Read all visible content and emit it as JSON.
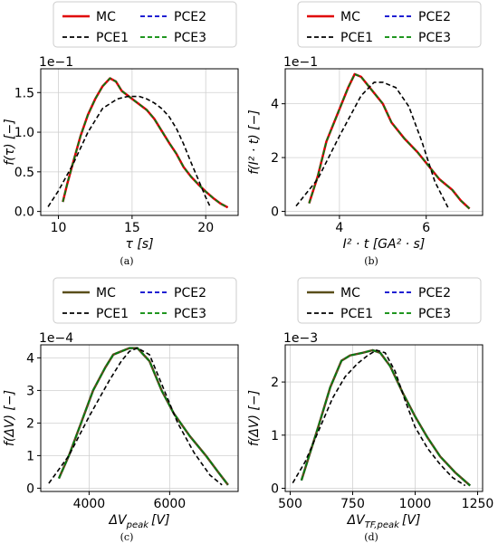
{
  "figure": {
    "legend_labels": [
      "MC",
      "PCE1",
      "PCE2",
      "PCE3"
    ],
    "colors": {
      "MC": "#e00000",
      "PCE1": "#000000",
      "PCE2": "#0000cc",
      "PCE3": "#008800",
      "MC_lower": "#5a4f1a"
    }
  },
  "panels": [
    {
      "id": "a",
      "caption": "(a)",
      "scale_label": "1e−1",
      "ylabel": "f(τ) [−]",
      "xlabel": "τ [s]",
      "mc_color": "#e00000",
      "chart_data": {
        "type": "line",
        "xlim": [
          8.8,
          22.2
        ],
        "ylim": [
          -0.05,
          1.8
        ],
        "xticks": [
          10,
          15,
          20
        ],
        "xtick_labels": [
          "10",
          "15",
          "20"
        ],
        "yticks": [
          0,
          0.5,
          1.0,
          1.5
        ],
        "ytick_labels": [
          "0.0",
          "0.5",
          "1.0",
          "1.5"
        ],
        "grid": true,
        "legend_position": "top-outside",
        "series": [
          {
            "name": "MC",
            "style": "solid",
            "x": [
              10.3,
              10.6,
              11,
              11.5,
              12,
              12.5,
              13,
              13.5,
              13.9,
              14.3,
              15,
              15.5,
              16,
              16.5,
              17,
              17.5,
              18,
              18.5,
              19,
              19.5,
              20,
              20.5,
              21,
              21.5
            ],
            "y": [
              0.12,
              0.35,
              0.62,
              0.95,
              1.22,
              1.42,
              1.58,
              1.68,
              1.64,
              1.52,
              1.42,
              1.35,
              1.28,
              1.17,
              1.02,
              0.87,
              0.73,
              0.56,
              0.44,
              0.34,
              0.25,
              0.17,
              0.1,
              0.05
            ]
          },
          {
            "name": "PCE1",
            "style": "dashed",
            "x": [
              9.3,
              10,
              11,
              12,
              13,
              14,
              14.7,
              15.5,
              16,
              16.5,
              17,
              17.5,
              18,
              18.5,
              19,
              19.5,
              20,
              20.3
            ],
            "y": [
              0.06,
              0.26,
              0.6,
              1.0,
              1.3,
              1.42,
              1.45,
              1.45,
              1.42,
              1.37,
              1.3,
              1.2,
              1.05,
              0.85,
              0.62,
              0.4,
              0.18,
              0.06
            ]
          },
          {
            "name": "PCE2",
            "style": "dashed",
            "x": [
              10.3,
              10.6,
              11,
              11.5,
              12,
              12.5,
              13,
              13.5,
              13.9,
              14.3,
              15,
              15.5,
              16,
              16.5,
              17,
              17.5,
              18,
              18.5,
              19,
              19.5,
              20,
              20.5,
              21,
              21.5
            ],
            "y": [
              0.12,
              0.35,
              0.62,
              0.95,
              1.22,
              1.42,
              1.58,
              1.68,
              1.64,
              1.52,
              1.42,
              1.35,
              1.28,
              1.17,
              1.02,
              0.87,
              0.73,
              0.56,
              0.44,
              0.34,
              0.25,
              0.17,
              0.1,
              0.05
            ]
          },
          {
            "name": "PCE3",
            "style": "dashed",
            "x": [
              10.3,
              10.6,
              11,
              11.5,
              12,
              12.5,
              13,
              13.5,
              13.9,
              14.3,
              15,
              15.5,
              16,
              16.5,
              17,
              17.5,
              18,
              18.5,
              19,
              19.5,
              20,
              20.5,
              21,
              21.5
            ],
            "y": [
              0.12,
              0.35,
              0.62,
              0.95,
              1.22,
              1.42,
              1.58,
              1.68,
              1.64,
              1.52,
              1.42,
              1.35,
              1.28,
              1.17,
              1.02,
              0.87,
              0.73,
              0.56,
              0.44,
              0.34,
              0.25,
              0.17,
              0.1,
              0.05
            ]
          }
        ]
      }
    },
    {
      "id": "b",
      "caption": "(b)",
      "scale_label": "1e−1",
      "ylabel": "f(I² · t) [−]",
      "xlabel": "I² · t [GA² · s]",
      "mc_color": "#e00000",
      "chart_data": {
        "type": "line",
        "xlim": [
          2.75,
          7.3
        ],
        "ylim": [
          -0.15,
          5.3
        ],
        "xticks": [
          4,
          6
        ],
        "xtick_labels": [
          "4",
          "6"
        ],
        "yticks": [
          0,
          2,
          4
        ],
        "ytick_labels": [
          "0",
          "2",
          "4"
        ],
        "grid": true,
        "legend_position": "top-outside",
        "series": [
          {
            "name": "MC",
            "style": "solid",
            "x": [
              3.3,
              3.5,
              3.7,
              4.0,
              4.2,
              4.35,
              4.5,
              4.7,
              5.0,
              5.2,
              5.5,
              5.8,
              6.0,
              6.3,
              6.6,
              6.8,
              7.0
            ],
            "y": [
              0.3,
              1.3,
              2.6,
              3.8,
              4.6,
              5.1,
              5.0,
              4.6,
              4.0,
              3.3,
              2.7,
              2.2,
              1.8,
              1.2,
              0.8,
              0.4,
              0.1
            ]
          },
          {
            "name": "PCE1",
            "style": "dashed",
            "x": [
              3.0,
              3.5,
              4.0,
              4.5,
              4.8,
              5.0,
              5.3,
              5.6,
              5.9,
              6.2,
              6.5
            ],
            "y": [
              0.2,
              1.2,
              2.8,
              4.3,
              4.8,
              4.8,
              4.6,
              3.9,
              2.6,
              1.1,
              0.15
            ]
          },
          {
            "name": "PCE2",
            "style": "dashed",
            "x": [
              3.3,
              3.5,
              3.7,
              4.0,
              4.2,
              4.35,
              4.5,
              4.7,
              5.0,
              5.2,
              5.5,
              5.8,
              6.0,
              6.3,
              6.6,
              6.8,
              7.0
            ],
            "y": [
              0.3,
              1.3,
              2.6,
              3.8,
              4.6,
              5.1,
              5.0,
              4.6,
              4.0,
              3.3,
              2.7,
              2.2,
              1.8,
              1.2,
              0.8,
              0.4,
              0.1
            ]
          },
          {
            "name": "PCE3",
            "style": "dashed",
            "x": [
              3.3,
              3.5,
              3.7,
              4.0,
              4.2,
              4.35,
              4.5,
              4.7,
              5.0,
              5.2,
              5.5,
              5.8,
              6.0,
              6.3,
              6.6,
              6.8,
              7.0
            ],
            "y": [
              0.3,
              1.3,
              2.6,
              3.8,
              4.6,
              5.1,
              5.0,
              4.6,
              4.0,
              3.3,
              2.7,
              2.2,
              1.8,
              1.2,
              0.8,
              0.4,
              0.1
            ]
          }
        ]
      }
    },
    {
      "id": "c",
      "caption": "(c)",
      "scale_label": "1e−4",
      "ylabel": "f(ΔV) [−]",
      "xlabel": "ΔV_peak [V]",
      "xlabel_main": "ΔV",
      "xlabel_sub": "peak",
      "xlabel_unit": "[V]",
      "mc_color": "#5a4f1a",
      "chart_data": {
        "type": "line",
        "xlim": [
          2800,
          7700
        ],
        "ylim": [
          -0.1,
          4.4
        ],
        "xticks": [
          4000,
          6000
        ],
        "xtick_labels": [
          "4000",
          "6000"
        ],
        "yticks": [
          0,
          1,
          2,
          3,
          4
        ],
        "ytick_labels": [
          "0",
          "1",
          "2",
          "3",
          "4"
        ],
        "grid": true,
        "legend_position": "top-outside",
        "series": [
          {
            "name": "MC",
            "style": "solid",
            "x": [
              3250,
              3500,
              3800,
              4100,
              4400,
              4600,
              4800,
              5000,
              5200,
              5500,
              5800,
              6100,
              6500,
              6900,
              7200,
              7450
            ],
            "y": [
              0.3,
              1.0,
              2.0,
              3.0,
              3.7,
              4.1,
              4.2,
              4.3,
              4.3,
              3.9,
              3.0,
              2.3,
              1.6,
              1.0,
              0.5,
              0.1
            ]
          },
          {
            "name": "PCE1",
            "style": "dashed",
            "x": [
              3000,
              3500,
              4000,
              4500,
              4800,
              5000,
              5200,
              5500,
              5800,
              6200,
              6600,
              7000,
              7300
            ],
            "y": [
              0.15,
              1.0,
              2.2,
              3.3,
              3.9,
              4.2,
              4.3,
              4.1,
              3.2,
              2.0,
              1.1,
              0.4,
              0.1
            ]
          },
          {
            "name": "PCE2",
            "style": "dashed",
            "x": [
              3250,
              3500,
              3800,
              4100,
              4400,
              4600,
              4800,
              5000,
              5200,
              5500,
              5800,
              6100,
              6500,
              6900,
              7200,
              7450
            ],
            "y": [
              0.3,
              1.0,
              2.0,
              3.0,
              3.7,
              4.1,
              4.2,
              4.3,
              4.3,
              3.9,
              3.0,
              2.3,
              1.6,
              1.0,
              0.5,
              0.1
            ]
          },
          {
            "name": "PCE3",
            "style": "dashed",
            "x": [
              3250,
              3500,
              3800,
              4100,
              4400,
              4600,
              4800,
              5000,
              5200,
              5500,
              5800,
              6100,
              6500,
              6900,
              7200,
              7450
            ],
            "y": [
              0.3,
              1.0,
              2.0,
              3.0,
              3.7,
              4.1,
              4.2,
              4.3,
              4.3,
              3.9,
              3.0,
              2.3,
              1.6,
              1.0,
              0.5,
              0.1
            ]
          }
        ]
      }
    },
    {
      "id": "d",
      "caption": "(d)",
      "scale_label": "1e−3",
      "ylabel": "f(ΔV) [−]",
      "xlabel": "ΔV_TF,peak [V]",
      "xlabel_main": "ΔV",
      "xlabel_sub": "TF,peak",
      "xlabel_unit": "[V]",
      "mc_color": "#5a4f1a",
      "chart_data": {
        "type": "line",
        "xlim": [
          480,
          1270
        ],
        "ylim": [
          -0.06,
          2.7
        ],
        "xticks": [
          500,
          750,
          1000,
          1250
        ],
        "xtick_labels": [
          "500",
          "750",
          "1000",
          "1250"
        ],
        "yticks": [
          0,
          1,
          2
        ],
        "ytick_labels": [
          "0",
          "1",
          "2"
        ],
        "grid": true,
        "legend_position": "top-outside",
        "series": [
          {
            "name": "MC",
            "style": "solid",
            "x": [
              545,
              575,
              615,
              660,
              705,
              740,
              790,
              830,
              860,
              900,
              950,
              1000,
              1050,
              1100,
              1160,
              1220
            ],
            "y": [
              0.15,
              0.6,
              1.2,
              1.9,
              2.4,
              2.5,
              2.55,
              2.6,
              2.55,
              2.3,
              1.8,
              1.35,
              0.95,
              0.6,
              0.3,
              0.05
            ]
          },
          {
            "name": "PCE1",
            "style": "dashed",
            "x": [
              510,
              560,
              615,
              670,
              720,
              770,
              810,
              845,
              880,
              920,
              960,
              1000,
              1050,
              1100,
              1150,
              1200
            ],
            "y": [
              0.1,
              0.5,
              1.1,
              1.7,
              2.1,
              2.35,
              2.5,
              2.6,
              2.55,
              2.2,
              1.65,
              1.15,
              0.75,
              0.45,
              0.2,
              0.05
            ]
          },
          {
            "name": "PCE2",
            "style": "dashed",
            "x": [
              545,
              575,
              615,
              660,
              705,
              740,
              790,
              830,
              860,
              900,
              950,
              1000,
              1050,
              1100,
              1160,
              1220
            ],
            "y": [
              0.15,
              0.6,
              1.2,
              1.9,
              2.4,
              2.5,
              2.55,
              2.6,
              2.55,
              2.3,
              1.8,
              1.35,
              0.95,
              0.6,
              0.3,
              0.05
            ]
          },
          {
            "name": "PCE3",
            "style": "dashed",
            "x": [
              545,
              575,
              615,
              660,
              705,
              740,
              790,
              830,
              860,
              900,
              950,
              1000,
              1050,
              1100,
              1160,
              1220
            ],
            "y": [
              0.15,
              0.6,
              1.2,
              1.9,
              2.4,
              2.5,
              2.55,
              2.6,
              2.55,
              2.3,
              1.8,
              1.35,
              0.95,
              0.6,
              0.3,
              0.05
            ]
          }
        ]
      }
    }
  ]
}
